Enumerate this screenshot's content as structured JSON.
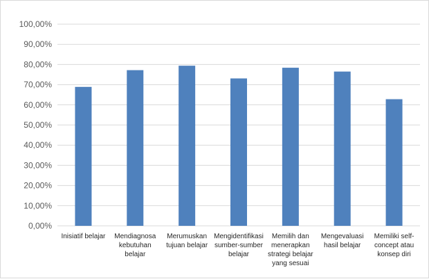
{
  "chart_data": {
    "type": "bar",
    "categories": [
      [
        "Inisiatif belajar"
      ],
      [
        "Mendiagnosa",
        "kebutuhan",
        "belajar"
      ],
      [
        "Merumuskan",
        "tujuan belajar"
      ],
      [
        "Mengidentifikasi",
        "sumber-sumber",
        "belajar"
      ],
      [
        "Memilih dan",
        "menerapkan",
        "strategi belajar",
        "yang sesuai"
      ],
      [
        "Mengevaluasi",
        "hasil belajar"
      ],
      [
        "Memiliki self-",
        "concept atau",
        "konsep diri"
      ]
    ],
    "values": [
      68.9,
      77.2,
      79.4,
      73.1,
      78.4,
      76.5,
      62.8
    ],
    "ylim": [
      0,
      100
    ],
    "yticks": [
      "0,00%",
      "10,00%",
      "20,00%",
      "30,00%",
      "40,00%",
      "50,00%",
      "60,00%",
      "70,00%",
      "80,00%",
      "90,00%",
      "100,00%"
    ],
    "grid": true,
    "bar_color": "#4f81bd",
    "grid_color": "#d9d9d9",
    "title": "",
    "xlabel": "",
    "ylabel": ""
  }
}
